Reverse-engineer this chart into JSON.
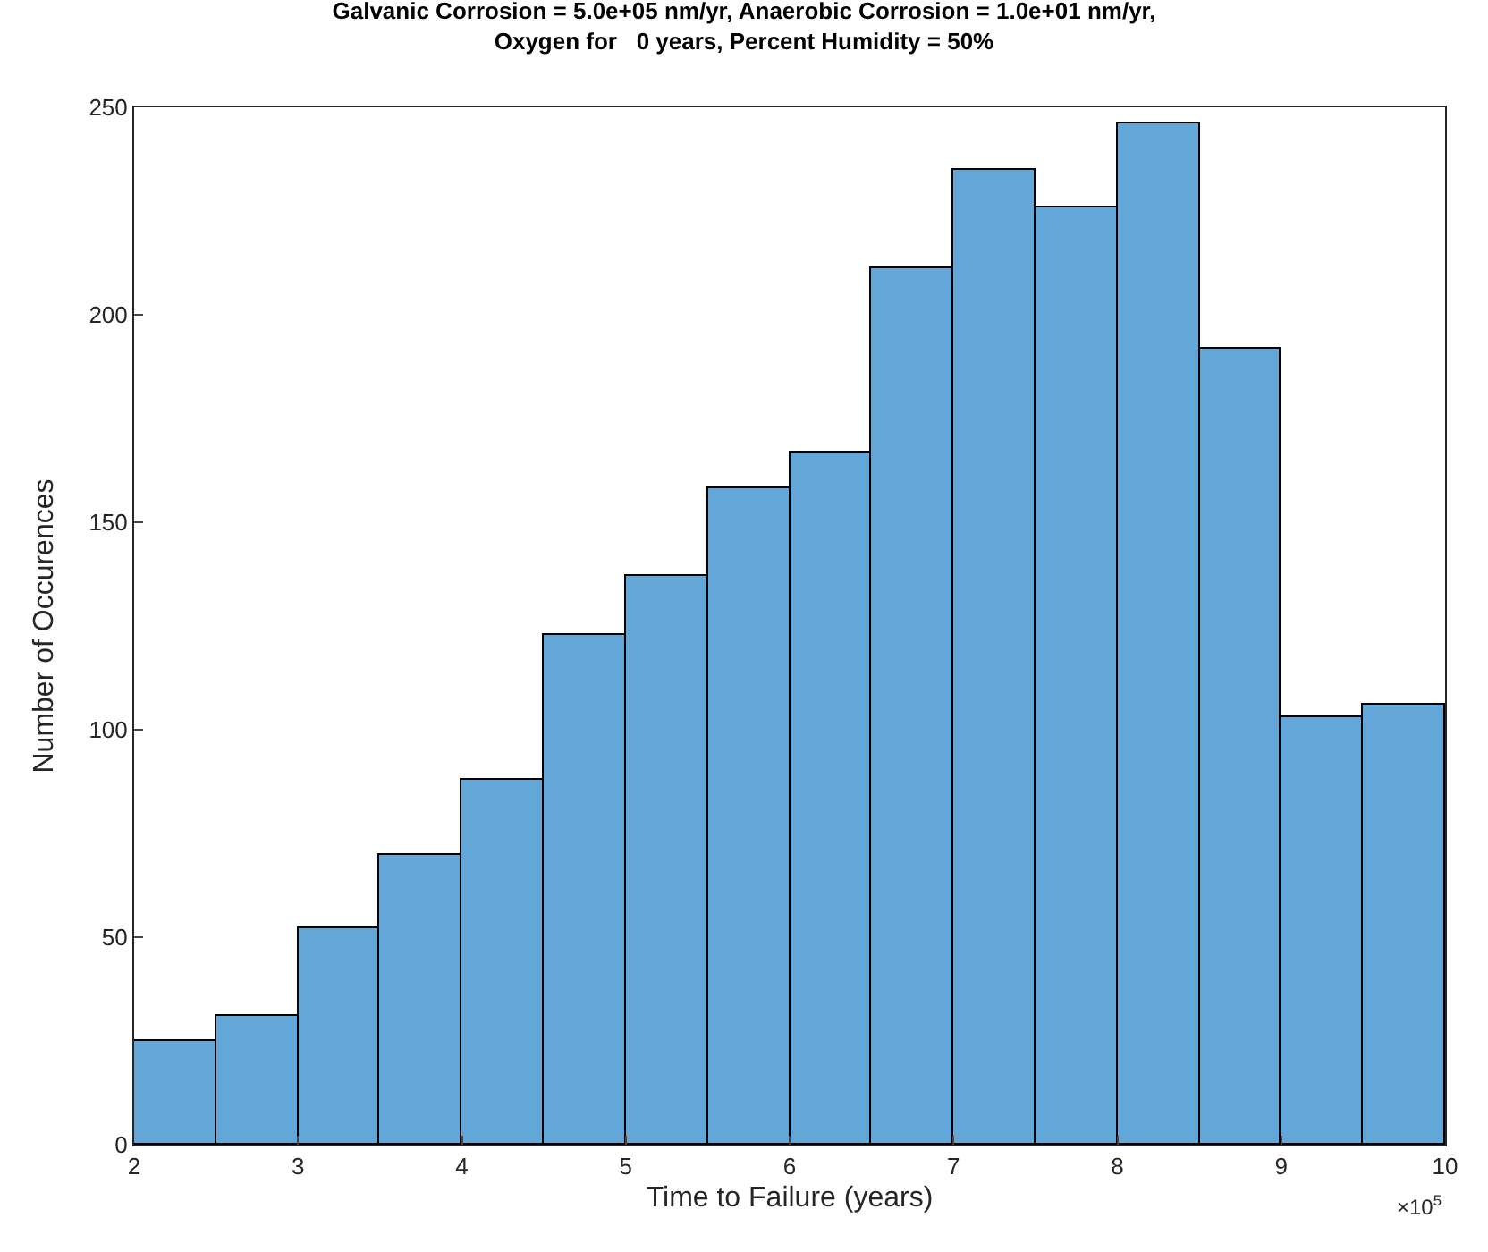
{
  "chart_data": {
    "type": "histogram",
    "title": "Galvanic Corrosion = 5.0e+05 nm/yr, Anaerobic Corrosion = 1.0e+01 nm/yr,\nOxygen for   0 years, Percent Humidity = 50%",
    "xlabel": "Time to Failure (years)",
    "ylabel": "Number of Occurences",
    "bins": [
      2,
      2.5,
      3,
      3.5,
      4,
      4.5,
      5,
      5.5,
      6,
      6.5,
      7,
      7.5,
      8,
      8.5,
      9,
      9.5,
      10
    ],
    "values": [
      25,
      31,
      52,
      70,
      88,
      123,
      137,
      158,
      167,
      211,
      235,
      226,
      246,
      192,
      103,
      106
    ],
    "color": "#62a7d8",
    "xlim": [
      2,
      10
    ],
    "xticks": [
      2,
      3,
      4,
      5,
      6,
      7,
      8,
      9,
      10
    ],
    "ylim": [
      0,
      250
    ],
    "yticks": [
      0,
      50,
      100,
      150,
      200,
      250
    ],
    "annotations": [
      "×10$^{5}$"
    ]
  }
}
